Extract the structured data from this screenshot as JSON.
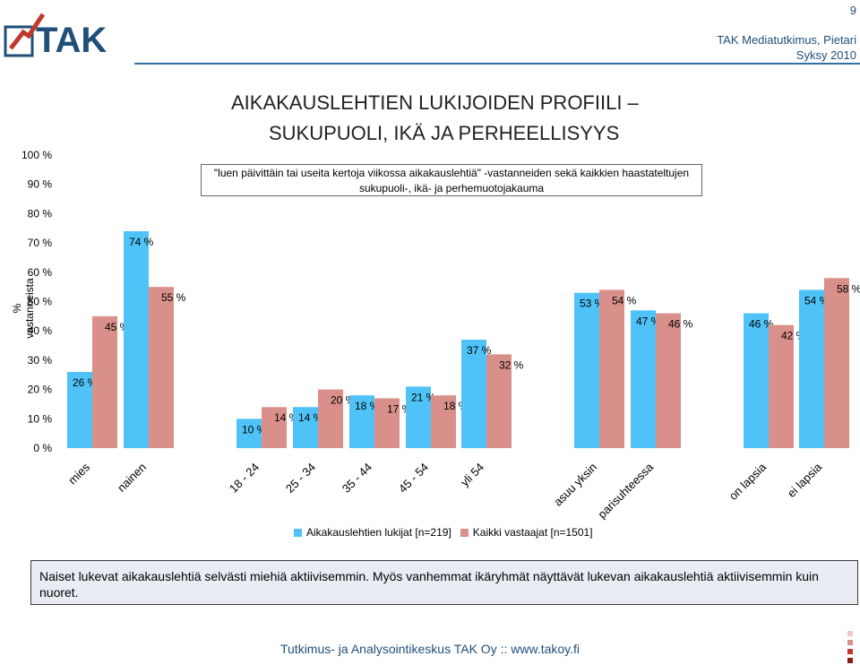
{
  "header": {
    "page_number": "9",
    "org": "TAK Mediatutkimus, Pietari",
    "period": "Syksy 2010",
    "logo_text": "TAK"
  },
  "title": {
    "line1": "AIKAKAUSLEHTIEN LUKIJOIDEN PROFIILI –",
    "line2": "SUKUPUOLI, IKÄ JA PERHEELLISYYS"
  },
  "subtitle": {
    "line1": "\"luen päivittäin tai useita kertoja viikossa aikakauslehtiä\" -vastanneiden sekä kaikkien haastateltujen",
    "line2": "sukupuoli-, ikä- ja perhemuotojakauma"
  },
  "note": "Naiset lukevat aikakauslehtiä selvästi miehiä aktiivisemmin. Myös vanhemmat ikäryhmät näyttävät lukevan aikakauslehtiä aktiivisemmin kuin nuoret.",
  "footer": "Tutkimus- ja Analysointikeskus TAK Oy :: www.takoy.fi",
  "colors": {
    "series1": "#4fc3f7",
    "series2": "#d9908a",
    "header_blue": "#1f4e79"
  },
  "chart_data": {
    "type": "bar",
    "ylabel": "% vastanneista",
    "ylim": [
      0,
      100
    ],
    "yticks": [
      "0 %",
      "10 %",
      "20 %",
      "30 %",
      "40 %",
      "50 %",
      "60 %",
      "70 %",
      "80 %",
      "90 %",
      "100 %"
    ],
    "grid": false,
    "legend_position": "bottom",
    "categories": [
      "mies",
      "nainen",
      "18 - 24",
      "25 - 34",
      "35 - 44",
      "45 - 54",
      "yli 54",
      "asuu yksin",
      "parisuhteessa",
      "on lapsia",
      "ei lapsia"
    ],
    "series": [
      {
        "name": "Aikakauslehtien lukijat [n=219]",
        "values": [
          26,
          74,
          10,
          14,
          18,
          21,
          37,
          53,
          47,
          46,
          54
        ],
        "labels": [
          "26 %",
          "74 %",
          "10 %",
          "14 %",
          "18 %",
          "21 %",
          "37 %",
          "53 %",
          "47 %",
          "46 %",
          "54 %"
        ]
      },
      {
        "name": "Kaikki vastaajat [n=1501]",
        "values": [
          45,
          55,
          14,
          20,
          17,
          18,
          32,
          54,
          46,
          42,
          58
        ],
        "labels": [
          "45 %",
          "55 %",
          "14 %",
          "20 %",
          "17 %",
          "18 %",
          "32 %",
          "54 %",
          "46 %",
          "42 %",
          "58 %"
        ]
      }
    ]
  }
}
